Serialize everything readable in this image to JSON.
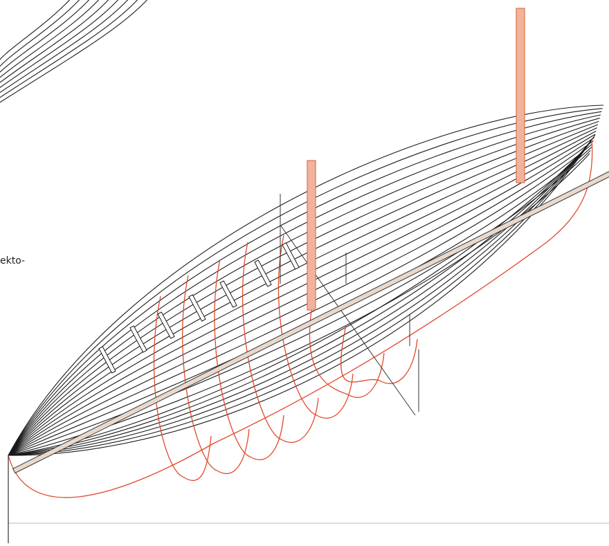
{
  "fragment_text": "ekto-",
  "colors": {
    "hull_lines": "#1a1a1a",
    "frames": "#e0492a",
    "mast_fill": "#f0b49c",
    "mast_stroke": "#e0704a",
    "baseline": "#b8b8b8"
  }
}
